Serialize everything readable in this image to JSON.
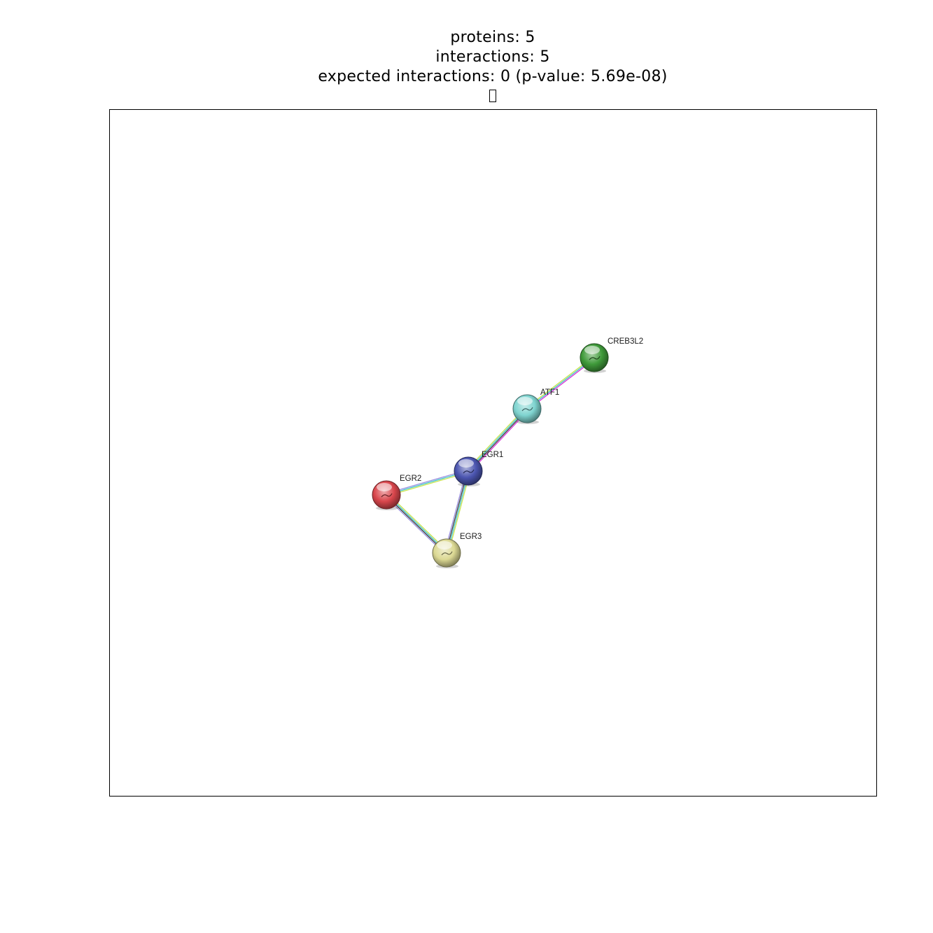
{
  "summary": {
    "proteins_line": "proteins: 5",
    "interactions_line": "interactions: 5",
    "expected_line": "expected interactions: 0 (p-value: 5.69e-08)"
  },
  "network": {
    "nodes": [
      {
        "id": "CREB3L2",
        "label": "CREB3L2",
        "color": "#3f9a3a"
      },
      {
        "id": "ATF1",
        "label": "ATF1",
        "color": "#7fd4d0"
      },
      {
        "id": "EGR1",
        "label": "EGR1",
        "color": "#4b55b0"
      },
      {
        "id": "EGR2",
        "label": "EGR2",
        "color": "#d9464c"
      },
      {
        "id": "EGR3",
        "label": "EGR3",
        "color": "#dcd994"
      }
    ],
    "edges": [
      {
        "source": "CREB3L2",
        "target": "ATF1",
        "evidence_colors": [
          "#d633d6",
          "#3ec2c7",
          "#c8e34d"
        ]
      },
      {
        "source": "ATF1",
        "target": "EGR1",
        "evidence_colors": [
          "#d633d6",
          "#3c3c3c",
          "#3ec2c7",
          "#c8e34d"
        ]
      },
      {
        "source": "EGR1",
        "target": "EGR2",
        "evidence_colors": [
          "#c8e34d",
          "#3ec2c7",
          "#9a8fe0"
        ]
      },
      {
        "source": "EGR1",
        "target": "EGR3",
        "evidence_colors": [
          "#c8e34d",
          "#3ec2c7",
          "#3c3c3c",
          "#9a8fe0"
        ]
      },
      {
        "source": "EGR2",
        "target": "EGR3",
        "evidence_colors": [
          "#c8e34d",
          "#3ec2c7",
          "#3c3c3c",
          "#9a8fe0"
        ]
      }
    ]
  }
}
